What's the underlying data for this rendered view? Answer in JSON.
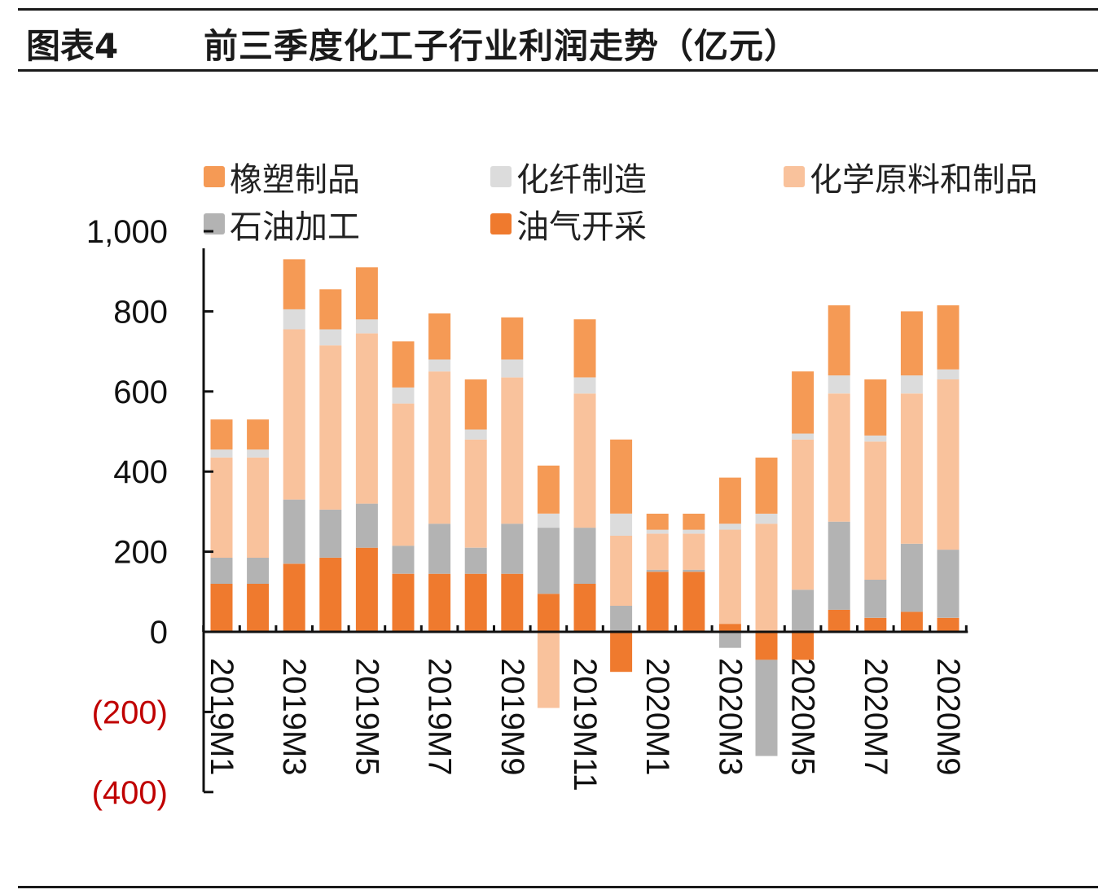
{
  "header": {
    "figure_label": "图表4",
    "title": "前三季度化工子行业利润走势（亿元）"
  },
  "colors": {
    "橡塑制品": "#f59a55",
    "化纤制造": "#dcdcdc",
    "化学原料和制品": "#f9c29c",
    "石油加工": "#b3b3b3",
    "油气开采": "#ef7a2e",
    "negative_tick": "#c00000"
  },
  "chart_data": {
    "type": "bar",
    "stacked": true,
    "categories": [
      "2019M1",
      "2019M2",
      "2019M3",
      "2019M4",
      "2019M5",
      "2019M6",
      "2019M7",
      "2019M8",
      "2019M9",
      "2019M10",
      "2019M11",
      "2019M12",
      "2020M1",
      "2020M2",
      "2020M3",
      "2020M4",
      "2020M5",
      "2020M6",
      "2020M7",
      "2020M8",
      "2020M9"
    ],
    "category_labels": [
      "2019M1",
      "",
      "2019M3",
      "",
      "2019M5",
      "",
      "2019M7",
      "",
      "2019M9",
      "",
      "2019M11",
      "",
      "2020M1",
      "",
      "2020M3",
      "",
      "2020M5",
      "",
      "2020M7",
      "",
      "2020M9"
    ],
    "series": [
      {
        "name": "油气开采",
        "values": [
          120,
          120,
          170,
          185,
          210,
          145,
          145,
          145,
          145,
          95,
          120,
          -100,
          150,
          150,
          20,
          -70,
          -70,
          55,
          35,
          50,
          35
        ]
      },
      {
        "name": "石油加工",
        "values": [
          65,
          65,
          160,
          120,
          110,
          70,
          125,
          65,
          125,
          165,
          140,
          65,
          5,
          5,
          -40,
          -240,
          105,
          220,
          95,
          170,
          170
        ]
      },
      {
        "name": "化学原料和制品",
        "values": [
          250,
          250,
          425,
          410,
          425,
          355,
          380,
          270,
          365,
          -190,
          335,
          175,
          90,
          90,
          235,
          270,
          375,
          320,
          345,
          375,
          425
        ]
      },
      {
        "name": "化纤制造",
        "values": [
          20,
          20,
          50,
          40,
          35,
          40,
          30,
          25,
          45,
          35,
          40,
          55,
          10,
          10,
          15,
          25,
          15,
          45,
          15,
          45,
          25
        ]
      },
      {
        "name": "橡塑制品",
        "values": [
          75,
          75,
          125,
          100,
          130,
          115,
          115,
          125,
          105,
          120,
          145,
          185,
          40,
          40,
          115,
          140,
          155,
          175,
          140,
          160,
          160
        ]
      }
    ],
    "legend": [
      "橡塑制品",
      "化纤制造",
      "化学原料和制品",
      "石油加工",
      "油气开采"
    ],
    "legend_position": "top",
    "y_ticks": [
      1000,
      800,
      600,
      400,
      200,
      0,
      -200,
      -400
    ],
    "y_tick_labels": [
      "1,000",
      "800",
      "600",
      "400",
      "200",
      "0",
      "(200)",
      "(400)"
    ],
    "ylim": [
      -400,
      1000
    ],
    "grid": false
  }
}
